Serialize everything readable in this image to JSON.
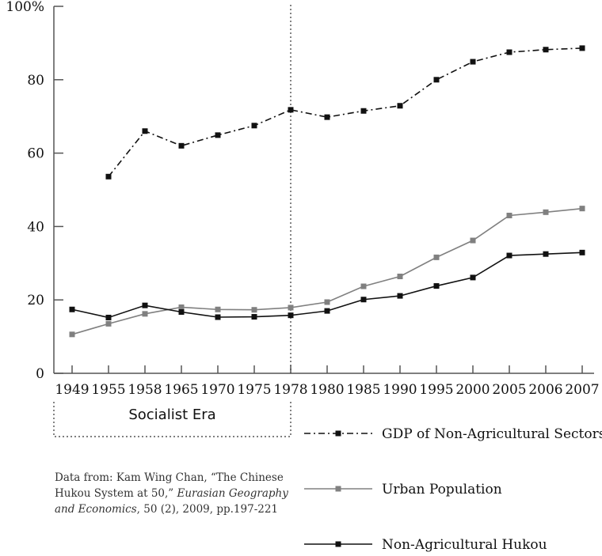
{
  "chart_data": {
    "type": "line",
    "x": [
      "1949",
      "1955",
      "1958",
      "1965",
      "1970",
      "1975",
      "1978",
      "1980",
      "1985",
      "1990",
      "1995",
      "2000",
      "2005",
      "2006",
      "2007"
    ],
    "ylim": [
      0,
      100
    ],
    "yticks": [
      "0",
      "20",
      "40",
      "60",
      "80",
      "100%"
    ],
    "series": [
      {
        "name": "GDP of Non-Agricultural Sectors",
        "color": "#111111",
        "style": "dash-dot",
        "values": [
          null,
          53.6,
          66.0,
          62.0,
          64.9,
          67.5,
          71.8,
          69.8,
          71.5,
          72.9,
          80.0,
          84.9,
          87.5,
          88.2,
          88.6
        ]
      },
      {
        "name": "Urban Population",
        "color": "#808080",
        "style": "solid",
        "values": [
          10.6,
          13.5,
          16.2,
          18.0,
          17.4,
          17.3,
          17.9,
          19.4,
          23.7,
          26.4,
          31.6,
          36.2,
          43.0,
          43.9,
          44.9
        ]
      },
      {
        "name": "Non-Agricultural Hukou",
        "color": "#111111",
        "style": "solid",
        "values": [
          17.4,
          15.2,
          18.5,
          16.7,
          15.3,
          15.4,
          15.8,
          17.0,
          20.1,
          21.1,
          23.8,
          26.1,
          32.1,
          32.5,
          32.9
        ]
      }
    ],
    "divider_at": "1978",
    "era_label": "Socialist Era",
    "source_note": {
      "line1": "Data from: Kam Wing Chan, “The Chinese",
      "line2a": "Hukou System at 50,” ",
      "line2b": "Eurasian Geography",
      "line3a": "and Economics",
      "line3b": ", 50 (2), 2009, pp.197-221"
    },
    "grid": false,
    "legend_position": "bottom-right"
  }
}
